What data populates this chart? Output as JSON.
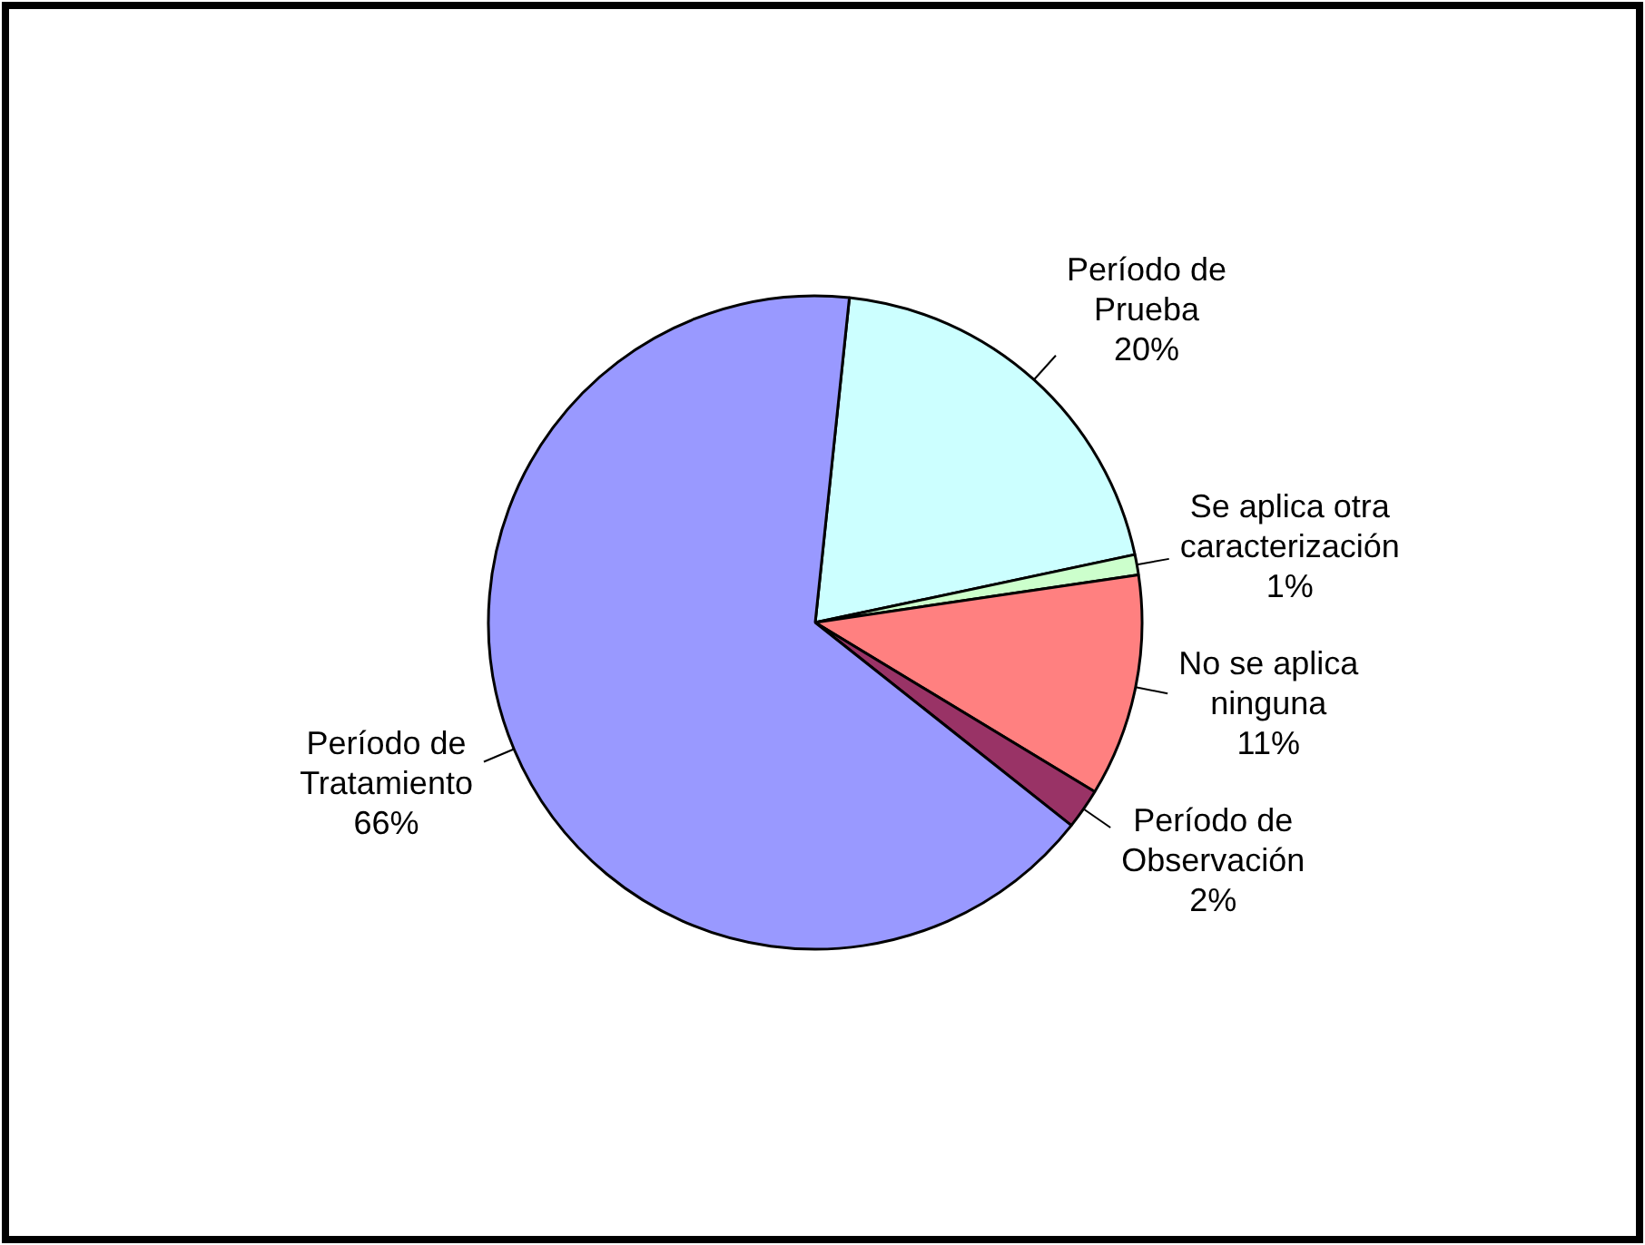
{
  "chart_data": {
    "type": "pie",
    "categories": [
      "Período de Prueba",
      "Se aplica otra caracterización",
      "No se aplica ninguna",
      "Período de Observación",
      "Período de Tratamiento"
    ],
    "values": [
      20,
      1,
      11,
      2,
      66
    ],
    "colors": [
      "#ccffff",
      "#ccffcc",
      "#ff8080",
      "#993366",
      "#9999ff"
    ],
    "value_labels": [
      "20%",
      "1%",
      "11%",
      "2%",
      "66%"
    ]
  }
}
